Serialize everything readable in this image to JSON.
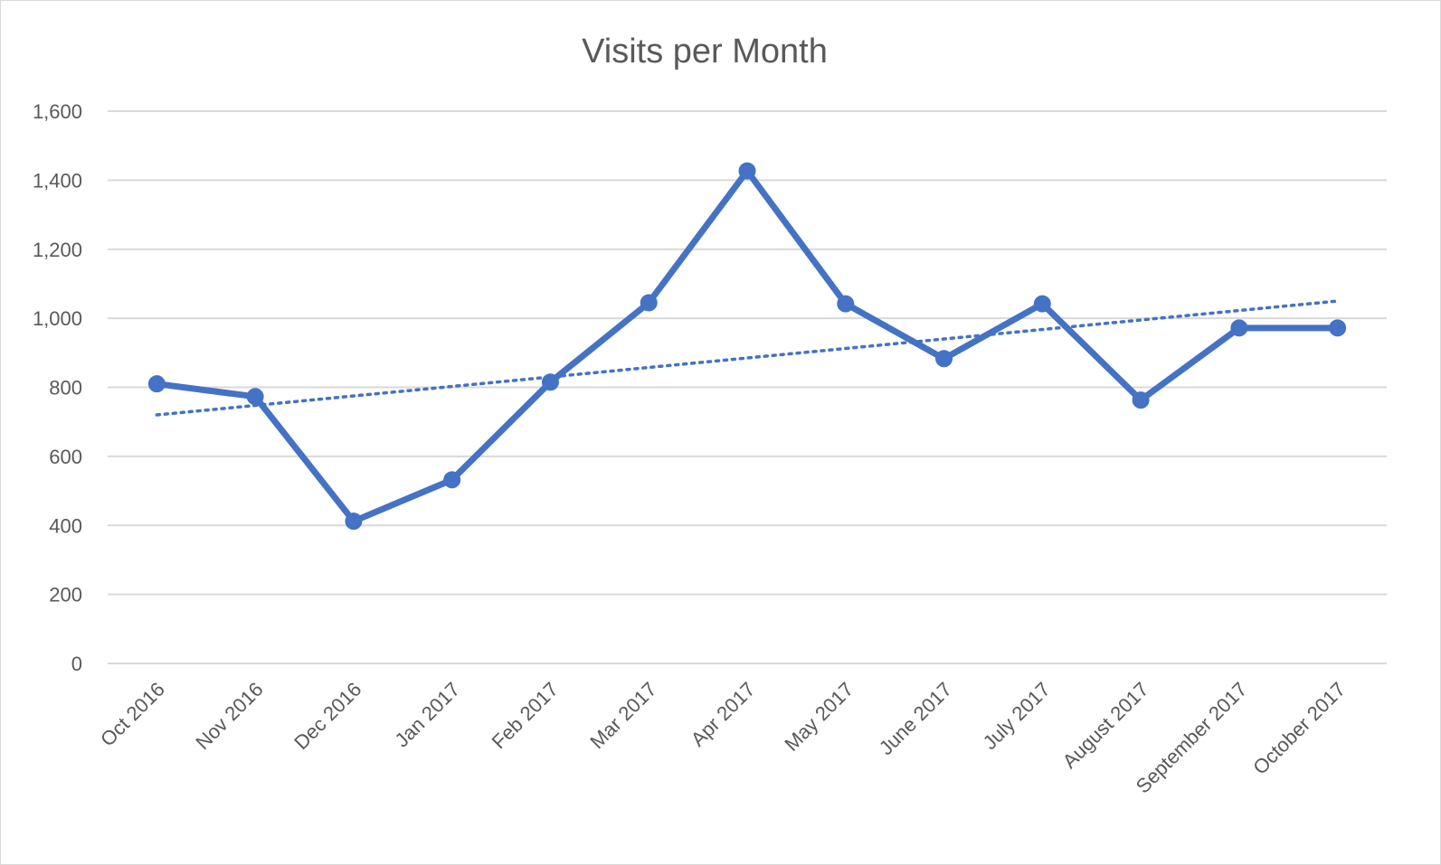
{
  "chart_data": {
    "type": "line",
    "title": "Visits per Month",
    "xlabel": "",
    "ylabel": "",
    "categories": [
      "Oct 2016",
      "Nov 2016",
      "Dec 2016",
      "Jan 2017",
      "Feb 2017",
      "Mar 2017",
      "Apr 2017",
      "May 2017",
      "June 2017",
      "July 2017",
      "August 2017",
      "September 2017",
      "October 2017"
    ],
    "series": [
      {
        "values": [
          810,
          773,
          412,
          532,
          815,
          1045,
          1427,
          1042,
          883,
          1042,
          763,
          972,
          972
        ],
        "color": "#4472c4",
        "marker": "circle"
      }
    ],
    "trendline": {
      "type": "linear",
      "start": 720,
      "end": 1050,
      "style": "dotted",
      "color": "#4472c4"
    },
    "ylim": [
      0,
      1600
    ],
    "yticks": [
      "0",
      "200",
      "400",
      "600",
      "800",
      "1,000",
      "1,200",
      "1,400",
      "1,600"
    ],
    "grid": true,
    "legend": "none",
    "colors": {
      "text": "#595959",
      "grid": "#d9d9d9",
      "border": "#d9d9d9",
      "background": "#ffffff"
    }
  }
}
